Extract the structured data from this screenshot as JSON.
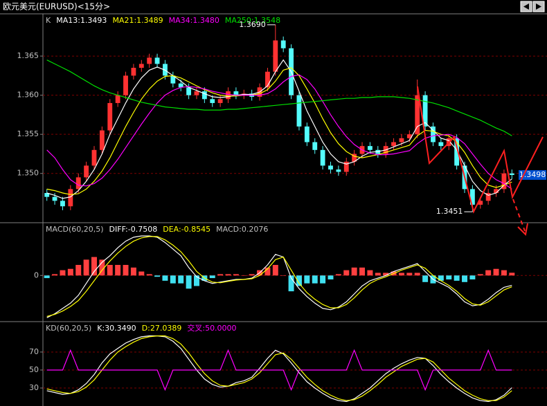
{
  "window": {
    "title": "欧元美元(EURUSD)<15分>"
  },
  "chart_data": [
    {
      "type": "candlestick",
      "title": "K",
      "open": [
        1.3475,
        1.347,
        1.3465,
        1.3458,
        1.348,
        1.3495,
        1.351,
        1.353,
        1.3555,
        1.359,
        1.36,
        1.3625,
        1.3635,
        1.364,
        1.3648,
        1.364,
        1.3625,
        1.3615,
        1.361,
        1.36,
        1.3605,
        1.3595,
        1.359,
        1.3595,
        1.3605,
        1.36,
        1.3602,
        1.3598,
        1.361,
        1.363,
        1.367,
        1.366,
        1.36,
        1.356,
        1.354,
        1.353,
        1.351,
        1.3505,
        1.3502,
        1.3515,
        1.3525,
        1.3535,
        1.353,
        1.3525,
        1.3535,
        1.354,
        1.3545,
        1.355,
        1.36,
        1.356,
        1.354,
        1.3535,
        1.3545,
        1.351,
        1.348,
        1.346,
        1.3465,
        1.3475,
        1.348,
        1.35
      ],
      "high": [
        1.348,
        1.3475,
        1.347,
        1.3485,
        1.35,
        1.3515,
        1.3535,
        1.356,
        1.3595,
        1.3605,
        1.363,
        1.364,
        1.3645,
        1.3653,
        1.3653,
        1.3645,
        1.363,
        1.362,
        1.3615,
        1.361,
        1.361,
        1.36,
        1.36,
        1.361,
        1.361,
        1.3607,
        1.3607,
        1.3615,
        1.3635,
        1.369,
        1.3675,
        1.3665,
        1.3605,
        1.3565,
        1.3545,
        1.3535,
        1.3515,
        1.351,
        1.352,
        1.353,
        1.354,
        1.354,
        1.3535,
        1.354,
        1.3545,
        1.355,
        1.3555,
        1.362,
        1.3605,
        1.3565,
        1.3545,
        1.355,
        1.355,
        1.3515,
        1.3485,
        1.347,
        1.348,
        1.3485,
        1.3505,
        1.3505
      ],
      "low": [
        1.3465,
        1.346,
        1.3453,
        1.3453,
        1.3475,
        1.349,
        1.3505,
        1.3525,
        1.355,
        1.3585,
        1.3595,
        1.362,
        1.363,
        1.3635,
        1.3635,
        1.362,
        1.361,
        1.3605,
        1.3595,
        1.3595,
        1.359,
        1.3585,
        1.3585,
        1.359,
        1.3595,
        1.3595,
        1.3593,
        1.3593,
        1.3605,
        1.3625,
        1.3655,
        1.3595,
        1.3555,
        1.3535,
        1.3525,
        1.3505,
        1.35,
        1.3497,
        1.3497,
        1.351,
        1.352,
        1.3525,
        1.352,
        1.352,
        1.353,
        1.3535,
        1.354,
        1.3545,
        1.3555,
        1.3535,
        1.353,
        1.353,
        1.3505,
        1.3475,
        1.3451,
        1.3455,
        1.346,
        1.347,
        1.3475,
        1.3493
      ],
      "close": [
        1.347,
        1.3465,
        1.3458,
        1.348,
        1.3495,
        1.351,
        1.353,
        1.3555,
        1.359,
        1.36,
        1.3625,
        1.3635,
        1.364,
        1.3648,
        1.364,
        1.3625,
        1.3615,
        1.361,
        1.36,
        1.3605,
        1.3595,
        1.359,
        1.3595,
        1.3605,
        1.36,
        1.3602,
        1.3598,
        1.361,
        1.363,
        1.367,
        1.366,
        1.36,
        1.356,
        1.354,
        1.353,
        1.351,
        1.3505,
        1.3502,
        1.3515,
        1.3525,
        1.3535,
        1.353,
        1.3525,
        1.3535,
        1.354,
        1.3545,
        1.355,
        1.36,
        1.356,
        1.354,
        1.3535,
        1.3545,
        1.351,
        1.348,
        1.346,
        1.3465,
        1.3475,
        1.348,
        1.35,
        1.3498
      ],
      "up_color": "#ff3232",
      "down_color": "#54fcfc",
      "series": [
        {
          "name": "MA13:1.3493",
          "color": "#ffffff",
          "values": [
            1.3475,
            1.3472,
            1.3468,
            1.347,
            1.3478,
            1.349,
            1.3505,
            1.3525,
            1.355,
            1.357,
            1.359,
            1.3608,
            1.3622,
            1.3632,
            1.3636,
            1.3632,
            1.3625,
            1.3618,
            1.361,
            1.3606,
            1.3602,
            1.3598,
            1.3597,
            1.3598,
            1.36,
            1.3601,
            1.3601,
            1.3604,
            1.3612,
            1.363,
            1.3645,
            1.363,
            1.3605,
            1.358,
            1.356,
            1.354,
            1.3525,
            1.3515,
            1.3512,
            1.3515,
            1.3522,
            1.3527,
            1.3528,
            1.353,
            1.3534,
            1.3538,
            1.3542,
            1.356,
            1.3565,
            1.3555,
            1.3545,
            1.3542,
            1.353,
            1.351,
            1.349,
            1.3478,
            1.3472,
            1.3475,
            1.3485,
            1.3493
          ]
        },
        {
          "name": "MA21:1.3489",
          "color": "#ffff00",
          "values": [
            1.348,
            1.3478,
            1.3475,
            1.3473,
            1.3474,
            1.348,
            1.349,
            1.3503,
            1.352,
            1.354,
            1.356,
            1.3578,
            1.3595,
            1.3608,
            1.3618,
            1.3624,
            1.3625,
            1.3622,
            1.3617,
            1.3612,
            1.3607,
            1.3603,
            1.36,
            1.3599,
            1.3599,
            1.36,
            1.36,
            1.3602,
            1.3607,
            1.3618,
            1.3632,
            1.3635,
            1.3625,
            1.3608,
            1.359,
            1.357,
            1.3552,
            1.3538,
            1.3528,
            1.3522,
            1.352,
            1.3522,
            1.3524,
            1.3527,
            1.353,
            1.3533,
            1.3536,
            1.3548,
            1.3555,
            1.3554,
            1.355,
            1.3548,
            1.354,
            1.3527,
            1.351,
            1.3495,
            1.3485,
            1.3482,
            1.3485,
            1.3489
          ]
        },
        {
          "name": "MA34:1.3480",
          "color": "#ff00ff",
          "values": [
            1.353,
            1.352,
            1.3505,
            1.3492,
            1.3485,
            1.3484,
            1.3487,
            1.3494,
            1.3505,
            1.3518,
            1.3533,
            1.3548,
            1.3563,
            1.3577,
            1.359,
            1.36,
            1.3606,
            1.361,
            1.3611,
            1.361,
            1.3608,
            1.3605,
            1.3603,
            1.3601,
            1.36,
            1.36,
            1.36,
            1.36,
            1.3602,
            1.3608,
            1.3617,
            1.3624,
            1.3626,
            1.362,
            1.3608,
            1.3592,
            1.3575,
            1.356,
            1.3547,
            1.3537,
            1.353,
            1.3526,
            1.3524,
            1.3524,
            1.3525,
            1.3527,
            1.3529,
            1.3538,
            1.3545,
            1.3548,
            1.3549,
            1.355,
            1.3546,
            1.3538,
            1.3525,
            1.3512,
            1.35,
            1.3492,
            1.3487,
            1.348
          ]
        },
        {
          "name": "MA250:1.3548",
          "color": "#00e000",
          "values": [
            1.3645,
            1.364,
            1.3635,
            1.363,
            1.3624,
            1.3618,
            1.3612,
            1.3607,
            1.3603,
            1.36,
            1.3597,
            1.3594,
            1.3591,
            1.3589,
            1.3587,
            1.3585,
            1.3584,
            1.3583,
            1.3582,
            1.3582,
            1.3581,
            1.3581,
            1.3581,
            1.3582,
            1.3582,
            1.3583,
            1.3584,
            1.3585,
            1.3586,
            1.3587,
            1.3588,
            1.3589,
            1.359,
            1.3591,
            1.3592,
            1.3593,
            1.3594,
            1.3595,
            1.3596,
            1.3596,
            1.3597,
            1.3597,
            1.3598,
            1.3598,
            1.3598,
            1.3597,
            1.3596,
            1.3594,
            1.3592,
            1.359,
            1.3587,
            1.3584,
            1.358,
            1.3576,
            1.3572,
            1.3568,
            1.3563,
            1.3558,
            1.3554,
            1.3548
          ]
        }
      ],
      "ylim": [
        1.3437,
        1.3704
      ],
      "yticks": [
        {
          "value": 1.35,
          "label": "1.350"
        },
        1.355,
        {
          "value": 1.36,
          "label": "1.360"
        },
        1.365
      ],
      "grid": true,
      "max_label": {
        "value": 1.369,
        "label": "1.3690"
      },
      "min_label": 1.3451,
      "last_label": 1.3498,
      "last_color": "#0050d0"
    },
    {
      "type": "macd",
      "title": "MACD(60,20,5)",
      "series": [
        {
          "name": "DIFF:-0.7508",
          "color": "#ffffff",
          "values": [
            -3.2,
            -2.9,
            -2.5,
            -2.1,
            -1.5,
            -0.6,
            0.3,
            1.0,
            1.5,
            2.1,
            2.6,
            2.9,
            3.0,
            3.0,
            2.9,
            2.5,
            2.0,
            1.5,
            0.6,
            -0.1,
            -0.4,
            -0.6,
            -0.5,
            -0.4,
            -0.3,
            -0.3,
            -0.2,
            0.2,
            0.8,
            1.6,
            1.4,
            -0.2,
            -1.0,
            -1.6,
            -2.1,
            -2.5,
            -2.6,
            -2.4,
            -2.0,
            -1.4,
            -0.8,
            -0.4,
            -0.2,
            0.0,
            0.3,
            0.5,
            0.7,
            0.9,
            0.3,
            -0.3,
            -0.6,
            -0.9,
            -1.4,
            -2.0,
            -2.3,
            -2.2,
            -1.8,
            -1.3,
            -0.9,
            -0.7508
          ]
        },
        {
          "name": "DEA:-0.8545",
          "color": "#ffff00",
          "values": [
            -3.1,
            -2.95,
            -2.7,
            -2.35,
            -1.9,
            -1.2,
            -0.4,
            0.4,
            1.1,
            1.7,
            2.2,
            2.6,
            2.85,
            2.95,
            2.95,
            2.7,
            2.3,
            1.8,
            1.1,
            0.3,
            -0.2,
            -0.5,
            -0.55,
            -0.45,
            -0.35,
            -0.3,
            -0.25,
            0.0,
            0.5,
            1.2,
            1.4,
            0.4,
            -0.6,
            -1.3,
            -1.8,
            -2.2,
            -2.45,
            -2.45,
            -2.2,
            -1.7,
            -1.1,
            -0.6,
            -0.3,
            -0.1,
            0.15,
            0.4,
            0.6,
            0.8,
            0.55,
            0.0,
            -0.4,
            -0.75,
            -1.2,
            -1.75,
            -2.15,
            -2.25,
            -2.0,
            -1.55,
            -1.1,
            -0.8545
          ]
        }
      ],
      "bars": {
        "name": "MACD:0.2076",
        "up_color": "#ff4040",
        "down_color": "#40e0f0",
        "values": [
          -0.2,
          0.1,
          0.4,
          0.5,
          0.8,
          1.2,
          1.4,
          1.2,
          0.8,
          0.8,
          0.8,
          0.6,
          0.3,
          0.1,
          -0.1,
          -0.4,
          -0.6,
          -0.6,
          -1.0,
          -0.8,
          -0.4,
          -0.2,
          0.1,
          0.1,
          0.1,
          0.0,
          0.1,
          0.4,
          0.6,
          0.8,
          0.0,
          -1.2,
          -0.8,
          -0.6,
          -0.6,
          -0.6,
          -0.3,
          0.1,
          0.4,
          0.6,
          0.6,
          0.4,
          0.2,
          0.2,
          0.3,
          0.2,
          0.2,
          0.2,
          -0.5,
          -0.6,
          -0.4,
          -0.3,
          -0.4,
          -0.5,
          -0.3,
          0.1,
          0.4,
          0.5,
          0.4,
          0.2076
        ]
      },
      "ylim": [
        -3.5,
        4.0
      ],
      "yticks": [
        0
      ],
      "grid": true
    },
    {
      "type": "kd",
      "title": "KD(60,20,5)",
      "series": [
        {
          "name": "K:30.3490",
          "color": "#ffffff",
          "values": [
            27,
            25,
            23,
            24,
            28,
            35,
            45,
            58,
            68,
            74,
            80,
            84,
            87,
            88,
            88,
            87,
            82,
            74,
            62,
            50,
            40,
            34,
            31,
            32,
            36,
            38,
            42,
            52,
            63,
            72,
            68,
            58,
            47,
            37,
            30,
            24,
            19,
            16,
            15,
            18,
            24,
            30,
            38,
            46,
            52,
            57,
            61,
            64,
            63,
            55,
            45,
            37,
            30,
            24,
            19,
            16,
            15,
            17,
            22,
            30.349
          ]
        },
        {
          "name": "D:27.0389",
          "color": "#ffff00",
          "values": [
            29,
            27,
            25,
            24,
            26,
            31,
            39,
            50,
            61,
            70,
            76,
            81,
            85,
            87,
            88,
            88,
            85,
            79,
            69,
            57,
            46,
            38,
            33,
            32,
            34,
            36,
            40,
            47,
            57,
            67,
            69,
            62,
            52,
            42,
            34,
            27,
            22,
            18,
            16,
            17,
            21,
            27,
            34,
            42,
            48,
            54,
            58,
            62,
            63,
            59,
            50,
            41,
            34,
            27,
            22,
            18,
            16,
            16,
            20,
            27.0389
          ]
        },
        {
          "name": "交叉:50.0000",
          "color": "#ff00ff",
          "values": [
            50,
            50,
            50,
            72,
            50,
            50,
            50,
            50,
            50,
            50,
            50,
            50,
            50,
            50,
            50,
            28,
            50,
            50,
            50,
            50,
            50,
            50,
            50,
            72,
            50,
            50,
            50,
            50,
            50,
            50,
            50,
            28,
            50,
            50,
            50,
            50,
            50,
            50,
            50,
            72,
            50,
            50,
            50,
            50,
            50,
            50,
            50,
            50,
            28,
            50,
            50,
            50,
            50,
            50,
            50,
            50,
            72,
            50,
            50,
            50
          ]
        }
      ],
      "ylim": [
        10,
        103.8
      ],
      "yticks": [
        30,
        50,
        70
      ],
      "grid": true
    }
  ]
}
